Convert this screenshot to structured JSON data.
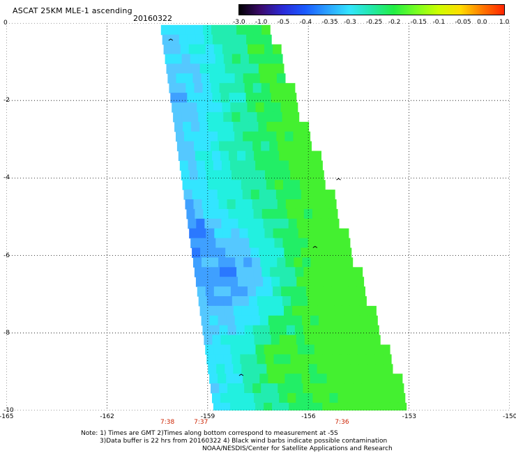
{
  "title": "ASCAT 25KM MLE-1 ascending",
  "date": "20160322",
  "colorbar": {
    "labels": [
      "-3.0",
      "-1.0",
      "-0.5",
      "-0.4",
      "-0.35",
      "-0.3",
      "-0.25",
      "-0.2",
      "-0.15",
      "-0.1",
      "-0.05",
      "0.0",
      "1.0"
    ],
    "colors": [
      "#000000",
      "#3b0a6b",
      "#2a2ad8",
      "#1a5aff",
      "#2aa0ff",
      "#33e5ff",
      "#22e8a8",
      "#22ee44",
      "#77ff22",
      "#ccff00",
      "#ffdd00",
      "#ff7700",
      "#ff2200"
    ]
  },
  "y_axis": {
    "labels": [
      "0",
      "-2",
      "-4",
      "-6",
      "-8",
      "-10"
    ],
    "values": [
      0,
      -2,
      -4,
      -6,
      -8,
      -10
    ]
  },
  "x_axis": {
    "labels": [
      "-165",
      "-162",
      "-159",
      "-156",
      "-153",
      "-150"
    ],
    "values": [
      -165,
      -162,
      -159,
      -156,
      -153,
      -150
    ]
  },
  "times": [
    {
      "label": "7:38",
      "lon": -160.2
    },
    {
      "label": "7:37",
      "lon": -159.2
    },
    {
      "label": "7:36",
      "lon": -155.0
    }
  ],
  "notes": [
    "Note: 1) Times are GMT 2)Times along bottom correspond to measurement at -5S",
    "3)Data buffer is 22 hrs from 20160322 4) Black wind barbs indicate possible contamination",
    "NOAA/NESDIS/Center for Satellite Applications and Research"
  ]
}
